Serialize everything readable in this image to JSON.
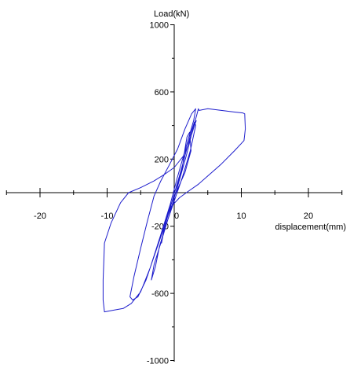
{
  "chart_data": {
    "type": "line",
    "title": "",
    "xlabel": "displacement(mm)",
    "ylabel": "Load(kN)",
    "xlim": [
      -25,
      25
    ],
    "ylim": [
      -1000,
      1000
    ],
    "x_ticks": [
      -20,
      -10,
      0,
      10,
      20
    ],
    "y_ticks": [
      -1000,
      -600,
      -200,
      200,
      600,
      1000
    ],
    "x_tick_labels": [
      "-20",
      "-10",
      "0",
      "10",
      "20"
    ],
    "y_tick_labels": [
      "-1000",
      "-600",
      "-200",
      "200",
      "600",
      "1000"
    ],
    "grid": false,
    "legend": "none",
    "line_color": "#1c1ccc",
    "series": [
      {
        "points": [
          [
            0,
            0
          ],
          [
            0.6,
            60
          ],
          [
            1.2,
            150
          ],
          [
            1.6,
            260
          ],
          [
            1.9,
            330
          ],
          [
            2.3,
            360
          ],
          [
            2.5,
            250
          ],
          [
            1.6,
            120
          ],
          [
            0.6,
            30
          ],
          [
            -0.4,
            -60
          ],
          [
            -1.2,
            -150
          ],
          [
            -1.6,
            -230
          ],
          [
            -1.9,
            -300
          ],
          [
            -1.4,
            -200
          ],
          [
            -0.6,
            -90
          ],
          [
            0.2,
            20
          ],
          [
            1.0,
            130
          ],
          [
            1.8,
            250
          ],
          [
            2.6,
            370
          ],
          [
            3.0,
            420
          ],
          [
            3.2,
            400
          ],
          [
            2.4,
            250
          ],
          [
            1.2,
            90
          ],
          [
            0,
            -50
          ],
          [
            -1.2,
            -190
          ],
          [
            -2.2,
            -320
          ],
          [
            -2.8,
            -440
          ],
          [
            -3.4,
            -520
          ],
          [
            -3.0,
            -430
          ],
          [
            -2.0,
            -300
          ],
          [
            -0.8,
            -140
          ],
          [
            0.6,
            50
          ],
          [
            1.8,
            220
          ],
          [
            2.8,
            380
          ],
          [
            3.4,
            470
          ],
          [
            3.6,
            500
          ],
          [
            3.7,
            490
          ],
          [
            5.0,
            500
          ],
          [
            7.0,
            490
          ],
          [
            9.0,
            480
          ],
          [
            10.2,
            475
          ],
          [
            10.5,
            470
          ],
          [
            10.6,
            380
          ],
          [
            10.4,
            310
          ],
          [
            9.0,
            250
          ],
          [
            7.0,
            170
          ],
          [
            5.0,
            100
          ],
          [
            3.6,
            50
          ],
          [
            2.0,
            5
          ],
          [
            0.8,
            -30
          ],
          [
            -0.4,
            -80
          ],
          [
            -1.0,
            -140
          ],
          [
            -1.8,
            -240
          ],
          [
            -3.0,
            -380
          ],
          [
            -4.2,
            -520
          ],
          [
            -5.4,
            -620
          ],
          [
            -6.2,
            -640
          ],
          [
            -6.6,
            -620
          ],
          [
            -6.0,
            -500
          ],
          [
            -5.0,
            -330
          ],
          [
            -4.0,
            -170
          ],
          [
            -3.0,
            -20
          ],
          [
            -2.0,
            70
          ],
          [
            -0.8,
            160
          ],
          [
            0.5,
            260
          ],
          [
            1.6,
            380
          ],
          [
            2.6,
            470
          ],
          [
            3.2,
            500
          ],
          [
            2.9,
            430
          ],
          [
            1.6,
            250
          ],
          [
            0.4,
            80
          ],
          [
            -0.6,
            -70
          ],
          [
            -2.0,
            -250
          ],
          [
            -3.6,
            -450
          ],
          [
            -5.0,
            -590
          ],
          [
            -6.4,
            -660
          ],
          [
            -7.6,
            -690
          ],
          [
            -9.0,
            -700
          ],
          [
            -10.4,
            -710
          ],
          [
            -10.6,
            -640
          ],
          [
            -10.6,
            -520
          ],
          [
            -10.5,
            -420
          ],
          [
            -10.4,
            -300
          ],
          [
            -9.4,
            -180
          ],
          [
            -8.0,
            -60
          ],
          [
            -6.8,
            0
          ],
          [
            -5.0,
            30
          ],
          [
            -3.0,
            70
          ],
          [
            -1.4,
            110
          ],
          [
            0,
            150
          ],
          [
            1.4,
            220
          ],
          [
            2.4,
            320
          ],
          [
            3.0,
            400
          ],
          [
            3.3,
            430
          ]
        ]
      }
    ]
  }
}
